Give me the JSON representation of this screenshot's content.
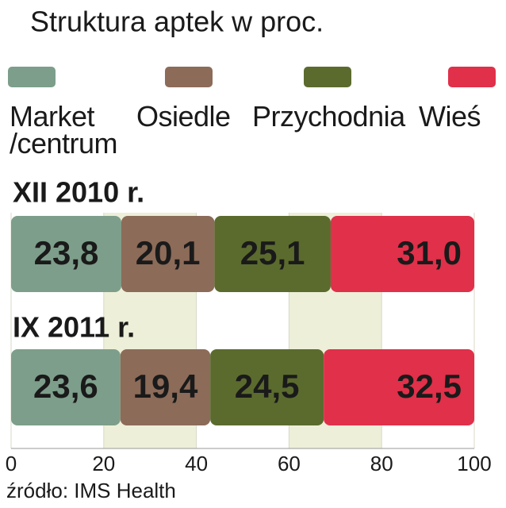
{
  "chart_data": {
    "type": "stacked-bar-horizontal",
    "title": "Struktura aptek w proc.",
    "categories": [
      "XII 2010 r.",
      "IX 2011 r."
    ],
    "series": [
      {
        "name": "Market /centrum",
        "color": "#7d9e8a",
        "values": [
          23.8,
          23.6
        ],
        "value_labels": [
          "23,8",
          "23,6"
        ]
      },
      {
        "name": "Osiedle",
        "color": "#8c6b59",
        "values": [
          20.1,
          19.4
        ],
        "value_labels": [
          "20,1",
          "19,4"
        ]
      },
      {
        "name": "Przychodnia",
        "color": "#5b6b2e",
        "values": [
          25.1,
          24.5
        ],
        "value_labels": [
          "25,1",
          "24,5"
        ]
      },
      {
        "name": "Wieś",
        "color": "#e0304a",
        "values": [
          31.0,
          32.5
        ],
        "value_labels": [
          "31,0",
          "32,5"
        ]
      }
    ],
    "xlim": [
      0,
      100
    ],
    "xticks": [
      0,
      20,
      40,
      60,
      80,
      100
    ],
    "source": "źródło: IMS Health"
  }
}
